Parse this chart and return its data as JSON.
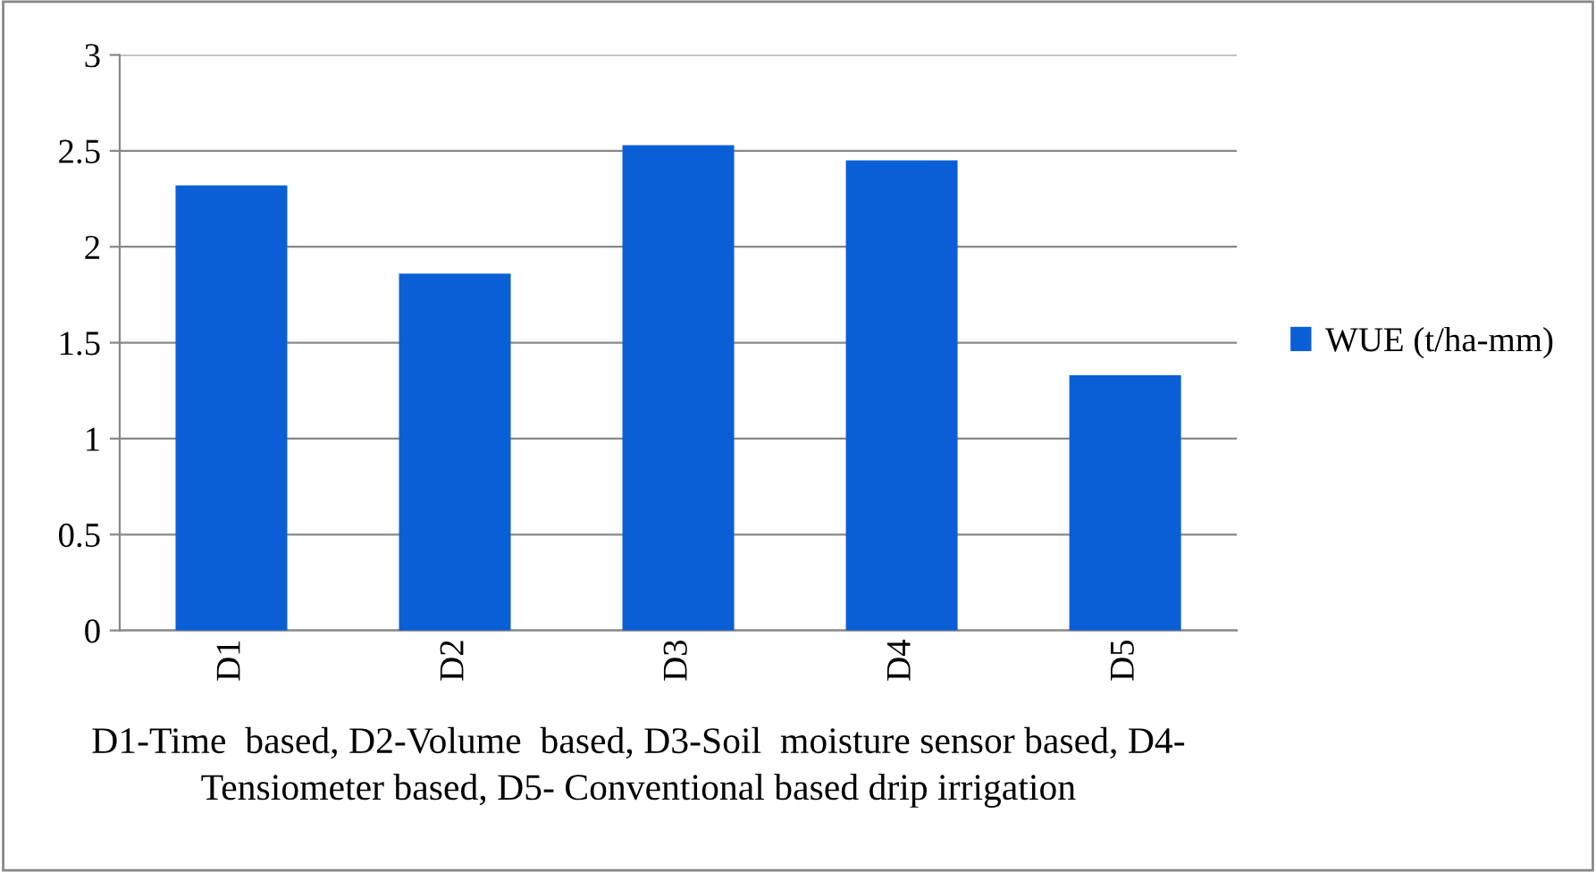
{
  "chart_data": {
    "type": "bar",
    "categories": [
      "D1",
      "D2",
      "D3",
      "D4",
      "D5"
    ],
    "series": [
      {
        "name": "WUE (t/ha-mm)",
        "color": "#0b5fd6",
        "values": [
          2.32,
          1.86,
          2.53,
          2.45,
          1.33
        ]
      }
    ],
    "ylim": [
      0,
      3
    ],
    "yticks": [
      0,
      0.5,
      1,
      1.5,
      2,
      2.5,
      3
    ],
    "grid": "y",
    "legend": "right",
    "annotations": [
      "D1-Time  based, D2-Volume  based, D3-Soil  moisture sensor based, D4-\nTensiometer based, D5- Conventional based drip irrigation"
    ]
  }
}
